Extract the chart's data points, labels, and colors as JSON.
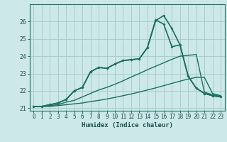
{
  "xlabel": "Humidex (Indice chaleur)",
  "background_color": "#cce8e8",
  "grid_color": "#aacccc",
  "line_color": "#1a7060",
  "xlim": [
    -0.5,
    23.5
  ],
  "ylim": [
    20.85,
    27.0
  ],
  "yticks": [
    21,
    22,
    23,
    24,
    25,
    26
  ],
  "xticks": [
    0,
    1,
    2,
    3,
    4,
    5,
    6,
    7,
    8,
    9,
    10,
    11,
    12,
    13,
    14,
    15,
    16,
    17,
    18,
    19,
    20,
    21,
    22,
    23
  ],
  "line0_x": [
    0,
    1,
    2,
    3,
    4,
    5,
    6,
    7,
    8,
    9,
    10,
    11,
    12,
    13,
    14,
    15,
    16,
    17,
    18,
    19,
    20,
    21,
    22,
    23
  ],
  "line0_y": [
    21.1,
    21.1,
    21.1,
    21.15,
    21.2,
    21.25,
    21.3,
    21.38,
    21.45,
    21.53,
    21.62,
    21.72,
    21.82,
    21.93,
    22.05,
    22.17,
    22.3,
    22.43,
    22.56,
    22.68,
    22.78,
    22.78,
    21.85,
    21.72
  ],
  "line1_x": [
    0,
    1,
    2,
    3,
    4,
    5,
    6,
    7,
    8,
    9,
    10,
    11,
    12,
    13,
    14,
    15,
    16,
    17,
    18,
    19,
    20,
    21,
    22,
    23
  ],
  "line1_y": [
    21.1,
    21.1,
    21.15,
    21.2,
    21.35,
    21.45,
    21.65,
    21.85,
    22.05,
    22.2,
    22.38,
    22.58,
    22.8,
    23.0,
    23.22,
    23.42,
    23.62,
    23.82,
    24.0,
    24.05,
    24.1,
    21.92,
    21.78,
    21.68
  ],
  "line2_x": [
    0,
    1,
    2,
    3,
    4,
    5,
    6,
    7,
    8,
    9,
    10,
    11,
    12,
    13,
    14,
    15,
    16,
    17,
    18,
    19,
    20,
    21,
    22,
    23
  ],
  "line2_y": [
    21.1,
    21.1,
    21.2,
    21.3,
    21.5,
    22.0,
    22.2,
    23.1,
    23.35,
    23.3,
    23.55,
    23.75,
    23.8,
    23.85,
    24.5,
    26.1,
    25.85,
    24.55,
    24.65,
    22.85,
    22.15,
    21.85,
    21.72,
    21.65
  ],
  "line3_x": [
    0,
    1,
    2,
    3,
    4,
    5,
    6,
    7,
    8,
    9,
    10,
    11,
    12,
    13,
    14,
    15,
    16,
    17,
    18,
    19,
    20,
    21,
    22,
    23
  ],
  "line3_y": [
    21.1,
    21.1,
    21.2,
    21.3,
    21.5,
    22.0,
    22.2,
    23.1,
    23.35,
    23.3,
    23.55,
    23.75,
    23.8,
    23.85,
    24.5,
    26.05,
    26.35,
    25.6,
    24.65,
    22.85,
    22.15,
    21.85,
    21.72,
    21.65
  ]
}
